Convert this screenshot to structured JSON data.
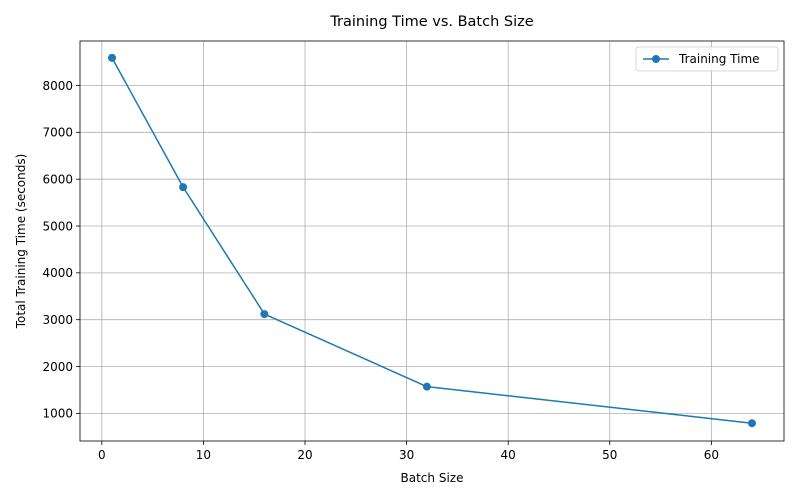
{
  "chart_data": {
    "type": "line",
    "title": "Training Time vs. Batch Size",
    "xlabel": "Batch Size",
    "ylabel": "Total Training Time (seconds)",
    "xlim": [
      -2.15,
      67.15
    ],
    "ylim": [
      410,
      8950
    ],
    "xticks": [
      0,
      10,
      20,
      30,
      40,
      50,
      60
    ],
    "yticks": [
      1000,
      2000,
      3000,
      4000,
      5000,
      6000,
      7000,
      8000
    ],
    "grid": true,
    "legend_position": "top-right",
    "series": [
      {
        "name": "Training Time",
        "color": "#1f77b4",
        "marker": "circle",
        "x": [
          1,
          8,
          16,
          32,
          64
        ],
        "y": [
          8590,
          5830,
          3120,
          1570,
          790
        ]
      }
    ]
  }
}
